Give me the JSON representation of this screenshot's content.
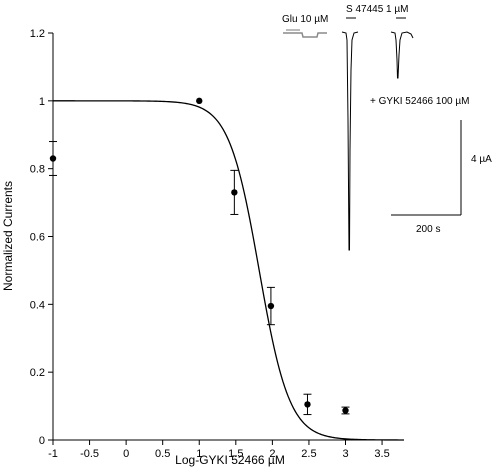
{
  "chart_data": {
    "type": "scatter",
    "xlabel": "Log-GYKI 52466 µM",
    "ylabel": "Normalized Currents",
    "xlim": [
      -1,
      3.8
    ],
    "ylim": [
      0,
      1.2
    ],
    "x_ticks": [
      -1,
      -0.5,
      0,
      0.5,
      1,
      1.5,
      2,
      2.5,
      3,
      3.5
    ],
    "x_tick_labels": [
      "-1",
      "-0.5",
      "0",
      "0.5",
      "1",
      "1.5",
      "2",
      "2.5",
      "3",
      "3.5"
    ],
    "y_ticks": [
      0,
      0.2,
      0.4,
      0.6,
      0.8,
      1,
      1.2
    ],
    "y_tick_labels": [
      "0",
      "0.2",
      "0.4",
      "0.6",
      "0.8",
      "1",
      "1.2"
    ],
    "grid": false,
    "points": [
      {
        "x": -1,
        "y": 0.83,
        "err": 0.05
      },
      {
        "x": 1,
        "y": 1.0,
        "err": 0
      },
      {
        "x": 1.48,
        "y": 0.73,
        "err": 0.065
      },
      {
        "x": 1.98,
        "y": 0.395,
        "err": 0.055
      },
      {
        "x": 2.48,
        "y": 0.105,
        "err": 0.03
      },
      {
        "x": 3.0,
        "y": 0.087,
        "err": 0.01
      }
    ],
    "fit_curve": {
      "type": "hill",
      "top": 1.0,
      "bottom": 0.0,
      "log_ic50": 1.82,
      "hill_slope": 2.1
    }
  },
  "inset": {
    "glu_label": "Glu 10 µM",
    "s_label": "S 47445 1 µM",
    "gyki_label": "+ GYKI 52466 100 µM",
    "scale_y_label": "4 µA",
    "scale_x_label": "200 s"
  }
}
